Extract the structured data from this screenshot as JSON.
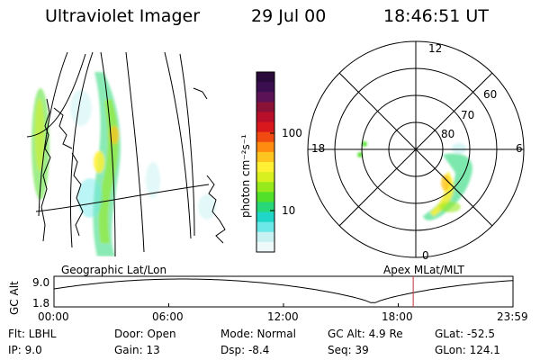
{
  "header": {
    "instrument": "Ultraviolet Imager",
    "date": "29 Jul 00",
    "time": "18:46:51 UT"
  },
  "geo_panel": {
    "label": "Geographic Lat/Lon"
  },
  "polar_panel": {
    "label": "Apex MLat/MLT",
    "mlt_labels": [
      "12",
      "18",
      "6",
      "0"
    ],
    "lat_labels": [
      "60",
      "70",
      "80"
    ]
  },
  "colorbar": {
    "unit_label": "photon cm⁻²s⁻¹",
    "ticks": [
      "100",
      "10"
    ],
    "colors": [
      "#2a0a3a",
      "#3b0e4f",
      "#5c1257",
      "#8a1236",
      "#b8102a",
      "#d8181c",
      "#f04a10",
      "#ff8c10",
      "#ffc420",
      "#fff034",
      "#d8f020",
      "#96ea1c",
      "#52e02a",
      "#28d878",
      "#20d6c8",
      "#6ce8e8",
      "#c8f2f2",
      "#eefafa"
    ]
  },
  "timeline": {
    "y_axis_label": "GC Alt",
    "y_ticks": [
      "9.0",
      "1.8"
    ],
    "x_ticks": [
      "00:00",
      "06:00",
      "12:00",
      "18:00",
      "23:59"
    ],
    "current_time_fraction": 0.7826,
    "marker_color": "#c03030"
  },
  "status": {
    "filter": "Flt: LBHL",
    "ip": "IP:  9.0",
    "door": "Door: Open",
    "gain": "Gain: 13",
    "mode": "Mode: Normal",
    "dsp": "Dsp:    -8.4",
    "gc_alt": "GC Alt: 4.9 Re",
    "seq": "Seq: 39",
    "glat": "GLat:  -52.5",
    "glon": "GLon: 124.1"
  }
}
